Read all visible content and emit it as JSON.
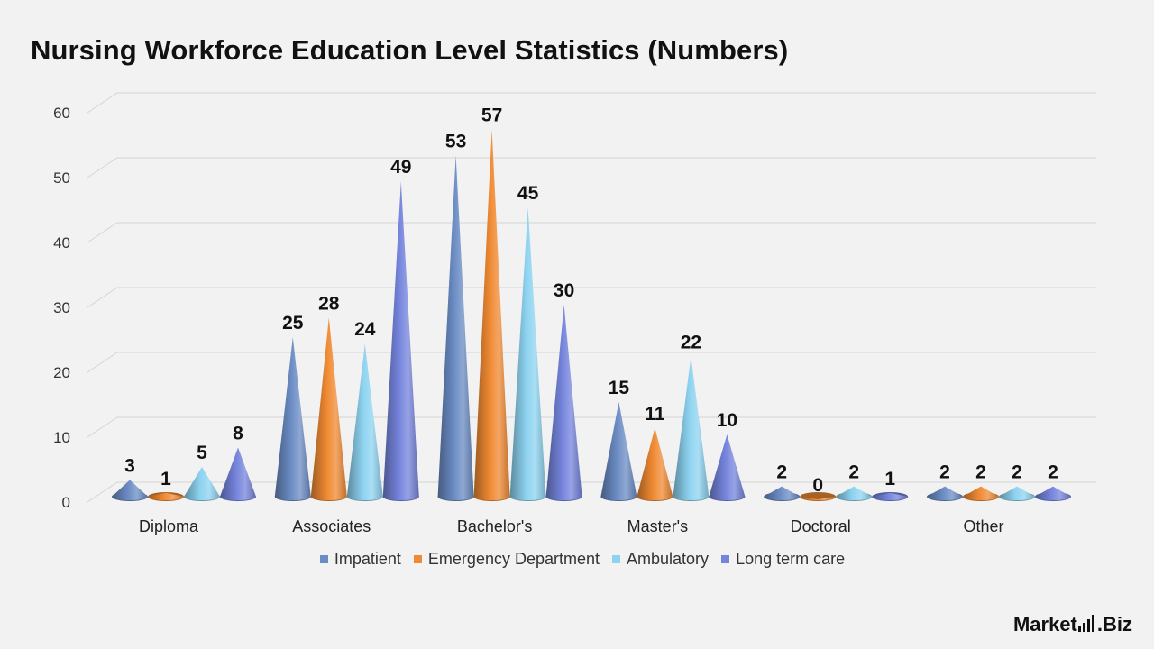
{
  "title": "Nursing Workforce Education Level Statistics (Numbers)",
  "brand": {
    "left": "Market",
    "right": ".Biz"
  },
  "chart_data": {
    "type": "bar",
    "style": "3d-cone",
    "title": "Nursing Workforce Education Level Statistics (Numbers)",
    "categories": [
      "Diploma",
      "Associates",
      "Bachelor's",
      "Master's",
      "Doctoral",
      "Other"
    ],
    "series": [
      {
        "name": "Impatient",
        "color": "#6b8cc4",
        "values": [
          3,
          25,
          53,
          15,
          2,
          2
        ]
      },
      {
        "name": "Emergency Department",
        "color": "#f08a33",
        "values": [
          1,
          28,
          57,
          11,
          0,
          2
        ]
      },
      {
        "name": "Ambulatory",
        "color": "#8dd3f0",
        "values": [
          5,
          24,
          45,
          22,
          2,
          2
        ]
      },
      {
        "name": "Long term care",
        "color": "#7584dc",
        "values": [
          8,
          49,
          30,
          10,
          1,
          2
        ]
      }
    ],
    "ylim": [
      0,
      60
    ],
    "yticks": [
      0,
      10,
      20,
      30,
      40,
      50,
      60
    ],
    "grid": true,
    "legend_position": "bottom",
    "data_labels": true
  }
}
